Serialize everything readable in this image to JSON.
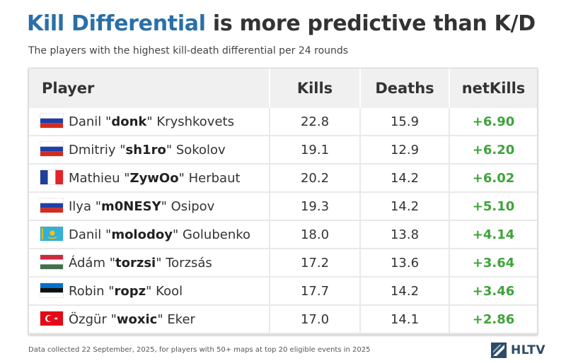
{
  "title_highlight": "Kill Differential",
  "title_rest": " is more predictive than K/D",
  "subtitle": "The players with the highest kill-death differential per 24 rounds",
  "footnote": "Data collected 22 September, 2025, for players with 50+ maps at top 20 eligible events in 2025",
  "logo_text": "HLTV",
  "colors": {
    "accent": "#2a6fa8",
    "positive": "#3fa33a",
    "logo": "#2e4a66"
  },
  "chart_data": {
    "type": "table",
    "title": "Kill Differential is more predictive than K/D",
    "columns": [
      "Player",
      "Kills",
      "Deaths",
      "netKills"
    ],
    "rows": [
      {
        "flag": "russia",
        "first": "Danil \"",
        "nick": "donk",
        "last": "\" Kryshkovets",
        "kills": "22.8",
        "deaths": "15.9",
        "net": "+6.90"
      },
      {
        "flag": "russia",
        "first": "Dmitriy \"",
        "nick": "sh1ro",
        "last": "\" Sokolov",
        "kills": "19.1",
        "deaths": "12.9",
        "net": "+6.20"
      },
      {
        "flag": "france",
        "first": "Mathieu \"",
        "nick": "ZywOo",
        "last": "\" Herbaut",
        "kills": "20.2",
        "deaths": "14.2",
        "net": "+6.02"
      },
      {
        "flag": "russia",
        "first": "Ilya \"",
        "nick": "m0NESY",
        "last": "\" Osipov",
        "kills": "19.3",
        "deaths": "14.2",
        "net": "+5.10"
      },
      {
        "flag": "kazakhstan",
        "first": "Danil \"",
        "nick": "molodoy",
        "last": "\" Golubenko",
        "kills": "18.0",
        "deaths": "13.8",
        "net": "+4.14"
      },
      {
        "flag": "hungary",
        "first": "Ádám \"",
        "nick": "torzsi",
        "last": "\" Torzsás",
        "kills": "17.2",
        "deaths": "13.6",
        "net": "+3.64"
      },
      {
        "flag": "estonia",
        "first": "Robin \"",
        "nick": "ropz",
        "last": "\" Kool",
        "kills": "17.7",
        "deaths": "14.2",
        "net": "+3.46"
      },
      {
        "flag": "turkey",
        "first": "Özgür \"",
        "nick": "woxic",
        "last": "\" Eker",
        "kills": "17.0",
        "deaths": "14.1",
        "net": "+2.86"
      }
    ]
  }
}
